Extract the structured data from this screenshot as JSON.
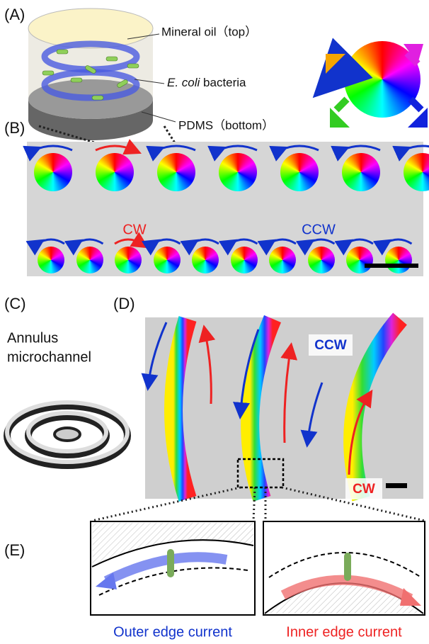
{
  "panels": {
    "a": {
      "label": "(A)",
      "top": "Mineral oil（top）",
      "middle": [
        "E. coli",
        "bacteria"
      ],
      "bottom": "PDMS（bottom）"
    },
    "b": {
      "label": "(B)",
      "cw": "CW",
      "ccw": "CCW"
    },
    "c": {
      "label": "(C)",
      "title": [
        "Annulus",
        "microchannel"
      ]
    },
    "d": {
      "label": "(D)",
      "ccw": "CCW",
      "cw": "CW"
    },
    "e": {
      "label": "(E)",
      "outer": "Outer edge current",
      "inner": "Inner edge current"
    }
  }
}
